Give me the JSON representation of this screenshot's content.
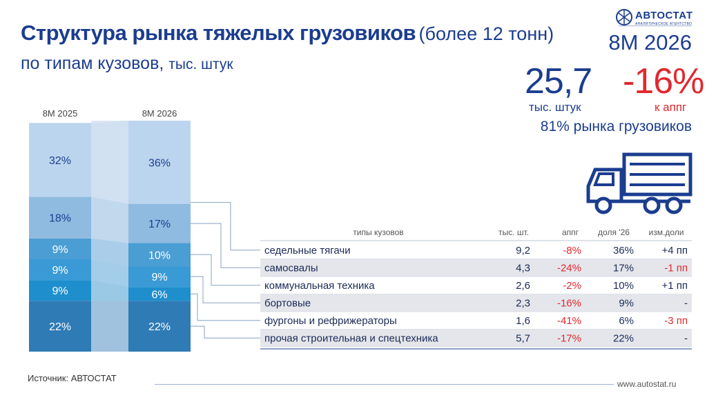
{
  "header": {
    "title": "Структура рынка тяжелых грузовиков",
    "title_note": "(более 12 тонн)",
    "subtitle": "по типам кузовов,",
    "subtitle_unit": "тыс. штук",
    "period": "8М 2026",
    "total_value": "25,7",
    "total_label": "тыс. штук",
    "change_value": "-16%",
    "change_label": "к аппг",
    "share_text": "81% рынка грузовиков",
    "logo_text": "АВТОСТАТ",
    "logo_sub": "АНАЛИТИЧЕСКОЕ АГЕНТСТВО"
  },
  "footer": {
    "source": "Источник: АВТОСТАТ",
    "url": "www.autostat.ru"
  },
  "table": {
    "headers": {
      "type": "типы кузовов",
      "units": "тыс. шт.",
      "yoy": "аппг",
      "share": "доля '26",
      "share_change": "изм.доли"
    },
    "rows": [
      {
        "type": "седельные тягачи",
        "units": "9,2",
        "yoy": "-8%",
        "share": "36%",
        "share_change": "+4 пп"
      },
      {
        "type": "самосвалы",
        "units": "4,3",
        "yoy": "-24%",
        "share": "17%",
        "share_change": "-1 пп"
      },
      {
        "type": "коммунальная техника",
        "units": "2,6",
        "yoy": "-2%",
        "share": "10%",
        "share_change": "+1 пп"
      },
      {
        "type": "бортовые",
        "units": "2,3",
        "yoy": "-16%",
        "share": "9%",
        "share_change": "-"
      },
      {
        "type": "фургоны и рефрижераторы",
        "units": "1,6",
        "yoy": "-41%",
        "share": "6%",
        "share_change": "-3 пп"
      },
      {
        "type": "прочая строительная и спецтехника",
        "units": "5,7",
        "yoy": "-17%",
        "share": "22%",
        "share_change": "-"
      }
    ]
  },
  "colors": {
    "title": "#1b3d8f",
    "negative": "#e0282e",
    "segment_colors": [
      "#2e7bb5",
      "#1e8fcc",
      "#3a9ad6",
      "#4a9ed4",
      "#8fbbe0",
      "#bcd5ee"
    ],
    "row_alt": "#e4e6eb"
  },
  "chart_data": {
    "type": "bar",
    "stacked": true,
    "categories": [
      "8М 2025",
      "8М 2026"
    ],
    "series": [
      {
        "values": [
          22,
          22
        ],
        "labels": [
          "22%",
          "22%"
        ]
      },
      {
        "values": [
          9,
          6
        ],
        "labels": [
          "9%",
          "6%"
        ]
      },
      {
        "values": [
          9,
          9
        ],
        "labels": [
          "9%",
          "9%"
        ]
      },
      {
        "values": [
          9,
          10
        ],
        "labels": [
          "9%",
          "10%"
        ]
      },
      {
        "values": [
          18,
          17
        ],
        "labels": [
          "18%",
          "17%"
        ]
      },
      {
        "values": [
          32,
          36
        ],
        "labels": [
          "32%",
          "36%"
        ]
      }
    ],
    "ylim": [
      0,
      100
    ],
    "unit": "%"
  }
}
